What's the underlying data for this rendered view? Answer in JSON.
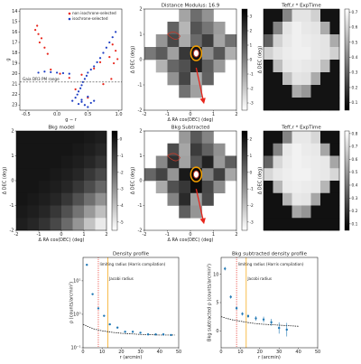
{
  "chart_data": [
    {
      "type": "scatter",
      "xlabel": "g − r",
      "ylabel": "g",
      "xlim": [
        -0.6,
        1.05
      ],
      "xticks": [
        -0.5,
        {
          "value": 0,
          "label": "0.0"
        },
        0.5,
        {
          "value": 1,
          "label": "1.0"
        }
      ],
      "ylim": [
        23.5,
        13.8
      ],
      "yticks": [
        14,
        15,
        16,
        17,
        18,
        19,
        20,
        21,
        22,
        23
      ],
      "legend": "upper right",
      "series": [
        {
          "name": "non isochrone-selected",
          "color": "#e8261c",
          "x": [
            -0.35,
            -0.3,
            -0.25,
            -0.28,
            -0.2,
            -0.32,
            -0.15,
            0.9,
            0.95,
            0.85,
            0.92,
            0.98,
            0.7,
            0.6,
            0.4,
            -0.1,
            0.05,
            0.2,
            0.3,
            0.5,
            0.75,
            0.88
          ],
          "values": [
            15.8,
            16.2,
            16.6,
            17.0,
            17.5,
            15.4,
            18.1,
            17.2,
            17.8,
            18.4,
            19.0,
            18.6,
            18.9,
            19.5,
            20.1,
            19.6,
            20.0,
            20.4,
            21.5,
            22.3,
            21.0,
            20.5
          ]
        },
        {
          "name": "isochrone-selected",
          "color": "#1f3fc4",
          "x": [
            0.95,
            0.9,
            0.85,
            0.8,
            0.75,
            0.7,
            0.65,
            0.6,
            0.55,
            0.5,
            0.48,
            0.45,
            0.42,
            0.4,
            0.38,
            0.35,
            0.33,
            -0.3,
            -0.2,
            -0.1,
            0.0,
            0.1,
            0.2,
            0.3,
            0.4,
            0.5,
            0.6,
            0.35,
            0.45,
            0.55,
            0.25,
            0.5,
            0.4
          ],
          "values": [
            16.0,
            16.5,
            17.0,
            17.5,
            18.0,
            18.5,
            18.9,
            19.3,
            19.6,
            19.9,
            20.2,
            20.5,
            20.8,
            21.1,
            21.4,
            21.7,
            22.0,
            19.9,
            19.8,
            19.85,
            19.9,
            19.95,
            20.0,
            22.3,
            22.5,
            22.2,
            22.6,
            22.9,
            23.0,
            22.8,
            22.6,
            23.2,
            22.7
          ]
        }
      ],
      "hline": 20.8,
      "annotation": "Gaia DR3 PM range"
    },
    {
      "type": "heatmap",
      "title": "Distance Modulus: 16.9",
      "xlabel": "Δ RA cos(DEC) (deg)",
      "ylabel": "Δ DEC (deg)",
      "xlim": [
        -2,
        2
      ],
      "ylim": [
        -2,
        2
      ],
      "xticks": [
        -2,
        -1,
        0,
        1,
        2
      ],
      "yticks": [
        -2,
        -1,
        0,
        1,
        2
      ],
      "cmap": "gray_r",
      "clim": [
        -3.5,
        3.5
      ],
      "cticks": [
        -3,
        -2,
        -1,
        0,
        1,
        2,
        3
      ],
      "contours": true,
      "z": [
        [
          null,
          null,
          null,
          -1,
          0.5,
          -0.5,
          null,
          null
        ],
        [
          null,
          null,
          0.8,
          -1.5,
          1.2,
          0.3,
          -0.8,
          null
        ],
        [
          null,
          -0.6,
          1.5,
          -1.2,
          0.6,
          1.8,
          -1.0,
          0.4
        ],
        [
          0.2,
          1.0,
          -0.9,
          2.0,
          3.0,
          -0.4,
          1.1,
          -1.3
        ],
        [
          null,
          -1.4,
          0.7,
          1.3,
          2.5,
          0.9,
          -0.7,
          null
        ],
        [
          null,
          null,
          -0.5,
          1.6,
          -1.1,
          0.8,
          null,
          null
        ],
        [
          null,
          null,
          null,
          0.4,
          -0.9,
          null,
          null,
          null
        ],
        [
          null,
          null,
          null,
          null,
          null,
          null,
          null,
          null
        ]
      ]
    },
    {
      "type": "heatmap",
      "title": "Teff,r * ExpTime",
      "ylabel": "Δ DEC (deg)",
      "xlim": [
        -2,
        2
      ],
      "ylim": [
        -2,
        2
      ],
      "cmap": "gray",
      "clim": [
        0.05,
        0.72
      ],
      "cticks": [
        0.1,
        0.2,
        0.3,
        0.4,
        0.5,
        0.6,
        0.7
      ],
      "z": [
        [
          0.1,
          0.1,
          0.4,
          0.65,
          0.65,
          0.6,
          0.1,
          0.1
        ],
        [
          0.1,
          0.4,
          0.65,
          0.68,
          0.66,
          0.65,
          0.5,
          0.1
        ],
        [
          0.3,
          0.6,
          0.66,
          0.68,
          0.67,
          0.66,
          0.65,
          0.5
        ],
        [
          0.6,
          0.65,
          0.67,
          0.68,
          0.68,
          0.66,
          0.65,
          0.6
        ],
        [
          0.1,
          0.55,
          0.66,
          0.67,
          0.66,
          0.65,
          0.55,
          0.1
        ],
        [
          0.1,
          0.1,
          0.55,
          0.65,
          0.64,
          0.5,
          0.1,
          0.1
        ],
        [
          0.1,
          0.1,
          0.1,
          0.5,
          0.45,
          0.1,
          0.1,
          0.1
        ],
        [
          0.1,
          0.1,
          0.1,
          0.1,
          0.1,
          0.1,
          0.1,
          0.1
        ]
      ]
    },
    {
      "type": "heatmap",
      "title": "Bkg model",
      "xlabel": "Δ RA cos(DEC) (deg)",
      "ylabel": "Δ DEC (deg)",
      "xlim": [
        -2,
        2
      ],
      "ylim": [
        -2,
        2
      ],
      "xticks": [
        -2,
        -1,
        0,
        1,
        2
      ],
      "yticks": [
        -2,
        -1,
        0,
        1,
        2
      ],
      "cmap": "gray_r",
      "clim": [
        -5.5,
        0.5
      ],
      "cticks": [
        -5,
        -4,
        -3,
        -2,
        -1,
        0
      ],
      "z": [
        [
          0,
          0,
          0,
          0,
          0,
          0,
          -0.1,
          -0.2
        ],
        [
          0,
          0,
          0,
          0,
          0,
          -0.1,
          -0.2,
          -0.4
        ],
        [
          0,
          0,
          0,
          0,
          -0.1,
          -0.2,
          -0.4,
          -0.7
        ],
        [
          0,
          0,
          0,
          -0.1,
          -0.2,
          -0.4,
          -0.8,
          -1.2
        ],
        [
          0,
          0,
          -0.1,
          -0.2,
          -0.4,
          -0.8,
          -1.3,
          -1.9
        ],
        [
          0,
          -0.1,
          -0.2,
          -0.4,
          -0.8,
          -1.4,
          -2.1,
          -2.9
        ],
        [
          -0.1,
          -0.2,
          -0.4,
          -0.8,
          -1.4,
          -2.2,
          -3.1,
          -4.0
        ],
        [
          -0.2,
          -0.4,
          -0.7,
          -1.2,
          -2.0,
          -3.0,
          -4.1,
          -5.0
        ]
      ]
    },
    {
      "type": "heatmap",
      "title": "Bkg Subtracted",
      "xlabel": "Δ RA cos(DEC) (deg)",
      "ylabel": "Δ DEC (deg)",
      "xlim": [
        -2,
        2
      ],
      "ylim": [
        -2,
        2
      ],
      "xticks": [
        -2,
        -1,
        0,
        1,
        2
      ],
      "yticks": [
        -2,
        -1,
        0,
        1,
        2
      ],
      "cmap": "gray_r",
      "clim": [
        -3.5,
        2.5
      ],
      "cticks": [
        -3,
        -2,
        -1,
        0,
        1,
        2
      ],
      "contours": true,
      "z": [
        [
          null,
          null,
          null,
          -1.1,
          0.4,
          -0.6,
          null,
          null
        ],
        [
          null,
          null,
          0.7,
          -1.4,
          1.1,
          0.2,
          -0.9,
          null
        ],
        [
          null,
          -0.7,
          1.4,
          -1.3,
          0.5,
          1.7,
          -1.1,
          0.3
        ],
        [
          0.1,
          0.9,
          -1.0,
          1.9,
          2.4,
          -0.5,
          1.0,
          -1.4
        ],
        [
          null,
          -1.5,
          0.6,
          1.2,
          2.2,
          0.8,
          -0.8,
          null
        ],
        [
          null,
          null,
          -0.6,
          1.5,
          -1.2,
          0.7,
          null,
          null
        ],
        [
          null,
          null,
          null,
          0.3,
          -1.0,
          null,
          null,
          null
        ],
        [
          null,
          null,
          null,
          null,
          null,
          null,
          null,
          null
        ]
      ]
    },
    {
      "type": "heatmap",
      "title": "Teff,r * ExpTime",
      "ylabel": "Δ DEC (deg)",
      "xlim": [
        -2,
        2
      ],
      "ylim": [
        -2,
        2
      ],
      "cmap": "gray",
      "clim": [
        0.05,
        0.82
      ],
      "cticks": [
        0.1,
        0.2,
        0.3,
        0.4,
        0.5,
        0.6,
        0.7,
        0.8
      ],
      "z": [
        [
          0.1,
          0.1,
          0.45,
          0.75,
          0.75,
          0.7,
          0.1,
          0.1
        ],
        [
          0.1,
          0.45,
          0.75,
          0.78,
          0.76,
          0.75,
          0.55,
          0.1
        ],
        [
          0.35,
          0.7,
          0.76,
          0.78,
          0.77,
          0.76,
          0.75,
          0.55
        ],
        [
          0.7,
          0.75,
          0.77,
          0.78,
          0.78,
          0.76,
          0.75,
          0.7
        ],
        [
          0.1,
          0.6,
          0.76,
          0.77,
          0.76,
          0.75,
          0.6,
          0.1
        ],
        [
          0.1,
          0.1,
          0.6,
          0.75,
          0.74,
          0.55,
          0.1,
          0.1
        ],
        [
          0.1,
          0.1,
          0.1,
          0.55,
          0.5,
          0.1,
          0.1,
          0.1
        ],
        [
          0.1,
          0.1,
          0.1,
          0.1,
          0.1,
          0.1,
          0.1,
          0.1
        ]
      ]
    },
    {
      "type": "profile",
      "title": "Density profile",
      "xlabel": "r (arcmin)",
      "ylabel": "ρ (counts/arcmin²)",
      "log_y": true,
      "xlim": [
        0,
        50
      ],
      "xticks": [
        0,
        10,
        20,
        30,
        40,
        50
      ],
      "ylim": [
        0.1,
        50
      ],
      "yticks": [
        {
          "value": 0.1,
          "label": "10⁻¹"
        },
        {
          "value": 1,
          "label": "10⁰"
        },
        {
          "value": 10,
          "label": "10¹"
        }
      ],
      "color": "#1f77b4",
      "x": [
        2,
        5,
        8,
        11,
        14,
        18,
        22,
        26,
        30,
        34,
        38,
        42,
        46
      ],
      "values": [
        30,
        4,
        1.5,
        0.9,
        0.5,
        0.4,
        0.3,
        0.3,
        0.28,
        0.25,
        0.25,
        0.25,
        0.24
      ],
      "fit": {
        "x": [
          0,
          3,
          6,
          10,
          15,
          20,
          30,
          40,
          48
        ],
        "y": [
          0.5,
          0.42,
          0.36,
          0.32,
          0.29,
          0.27,
          0.25,
          0.24,
          0.24
        ]
      },
      "vlines": [
        {
          "value": 8,
          "label": "limiting radius (Harris compilation)",
          "color": "#e8261c"
        },
        {
          "value": 13,
          "label": "Jacobi radius",
          "color": "#f5a000"
        }
      ]
    },
    {
      "type": "profile",
      "title": "Bkg subtracted density profile",
      "xlabel": "r (arcmin)",
      "ylabel": "Bkg subtracted ρ (counts/arcmin²)",
      "log_y": false,
      "xlim": [
        0,
        50
      ],
      "xticks": [
        0,
        10,
        20,
        30,
        40,
        50
      ],
      "ylim": [
        -3,
        13
      ],
      "yticks": [
        0,
        5,
        10
      ],
      "color": "#1f77b4",
      "x": [
        2,
        5,
        8,
        11,
        14,
        18,
        22,
        26,
        30,
        34
      ],
      "values": [
        11,
        6,
        4,
        3,
        2.6,
        2.2,
        2,
        1.5,
        0.5,
        0.2
      ],
      "errors": [
        0.3,
        0.3,
        0.3,
        0.3,
        0.3,
        0.4,
        0.5,
        0.6,
        1.0,
        1.2
      ],
      "fit": {
        "x": [
          0,
          5,
          10,
          15,
          20,
          30,
          40
        ],
        "y": [
          2.5,
          2.0,
          1.7,
          1.4,
          1.2,
          1.0,
          0.8
        ]
      },
      "vlines": [
        {
          "value": 8,
          "label": "limiting radius (Harris compilation)",
          "color": "#e8261c"
        },
        {
          "value": 13,
          "label": "Jacobi radius",
          "color": "#f5a000"
        }
      ]
    }
  ]
}
